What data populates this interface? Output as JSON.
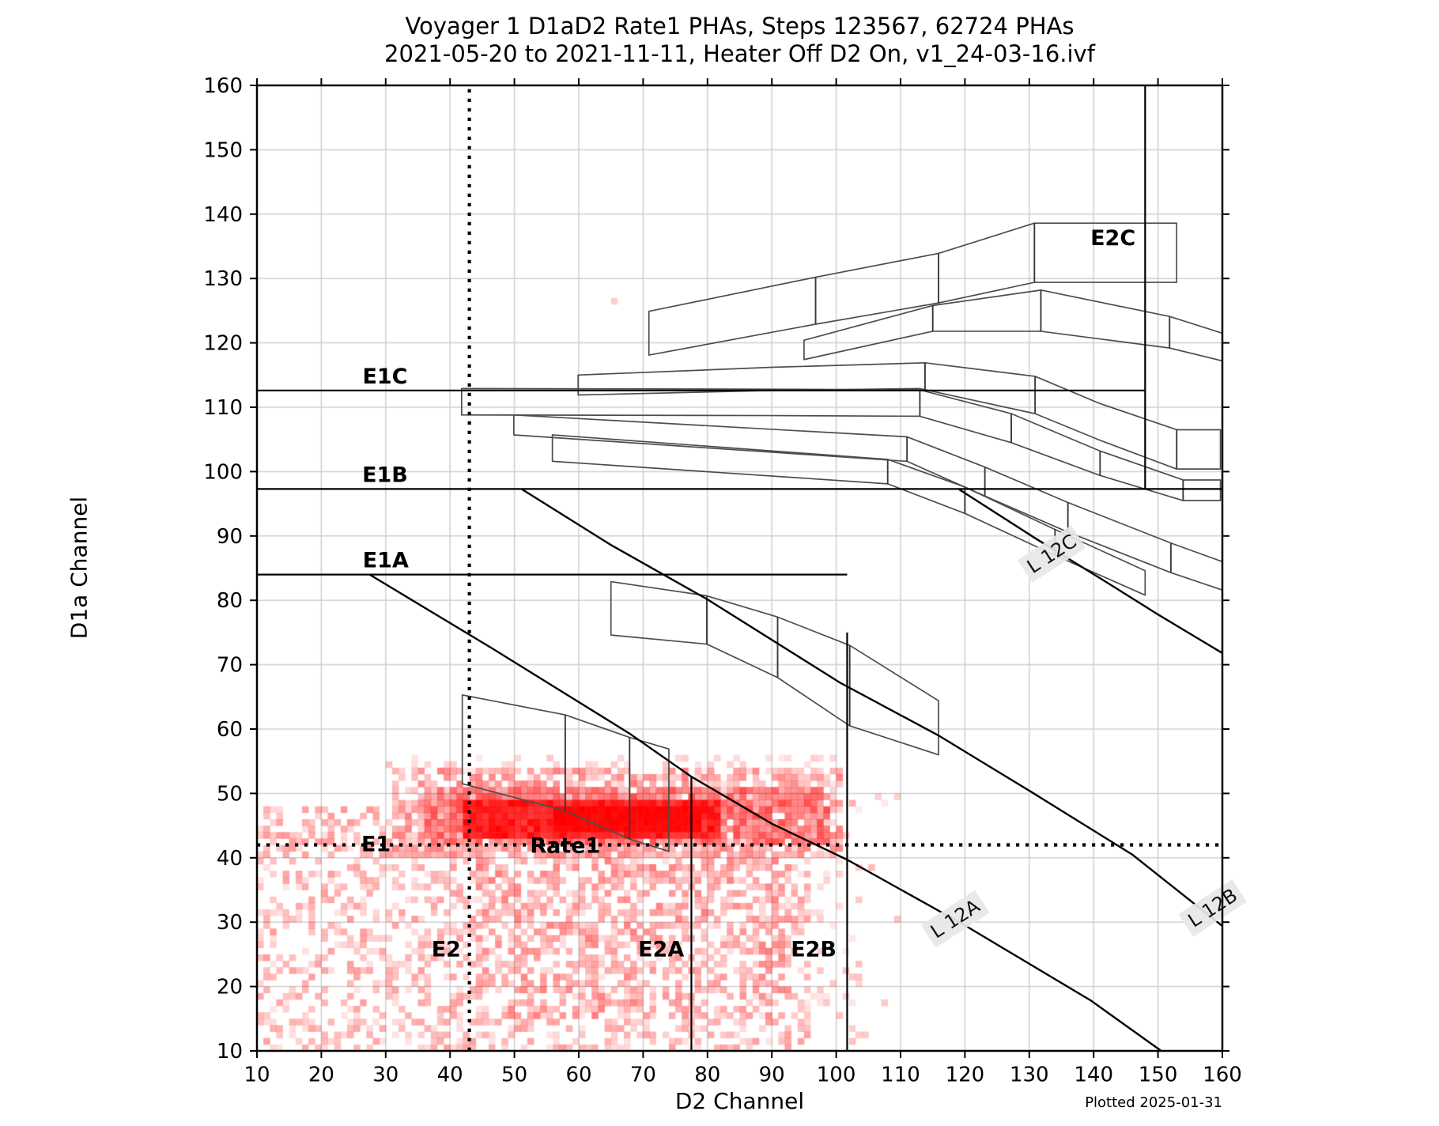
{
  "figure": {
    "title_line1": "Voyager 1 D1aD2 Rate1 PHAs, Steps 123567, 62724 PHAs",
    "title_line2": "2021-05-20 to 2021-11-11, Heater Off D2 On, v1_24-03-16.ivf",
    "footer": "Plotted 2025-01-31",
    "background": "#ffffff"
  },
  "chart_data": {
    "type": "heatmap",
    "title": "Voyager 1 D1aD2 Rate1 PHAs, Steps 123567, 62724 PHAs",
    "subtitle": "2021-05-20 to 2021-11-11, Heater Off D2 On, v1_24-03-16.ivf",
    "xlabel": "D2 Channel",
    "ylabel": "D1a Channel",
    "xlim": [
      10,
      160
    ],
    "ylim": [
      10,
      160
    ],
    "xticks": [
      10,
      20,
      30,
      40,
      50,
      60,
      70,
      80,
      90,
      100,
      110,
      120,
      130,
      140,
      150,
      160
    ],
    "yticks": [
      10,
      20,
      30,
      40,
      50,
      60,
      70,
      80,
      90,
      100,
      110,
      120,
      130,
      140,
      150,
      160
    ],
    "grid": true,
    "colors": {
      "heat": "#ff0000",
      "grid": "#cfcfcf",
      "band_stroke": "#4d4d4d",
      "line": "#000000",
      "label_bbox": "#e7e7e7"
    },
    "heatmap": {
      "cell_size": 1,
      "regions": [
        {
          "x": [
            10,
            95.5
          ],
          "y": [
            10,
            41.5
          ],
          "p": 0.4,
          "a": [
            0.1,
            0.38
          ]
        },
        {
          "x": [
            44,
            93
          ],
          "y": [
            15,
            41.5
          ],
          "p": 0.28,
          "a": [
            0.18,
            0.5
          ]
        },
        {
          "x": [
            10,
            39
          ],
          "y": [
            41.5,
            48
          ],
          "p": 0.45,
          "a": [
            0.12,
            0.4
          ]
        },
        {
          "x": [
            31,
            101
          ],
          "y": [
            40.5,
            53.5
          ],
          "p": 0.6,
          "a": [
            0.15,
            0.5
          ]
        },
        {
          "x": [
            36,
            99
          ],
          "y": [
            42,
            50.5
          ],
          "p": 0.85,
          "a": [
            0.3,
            0.7
          ]
        },
        {
          "x": [
            42,
            82
          ],
          "y": [
            43.5,
            48.5
          ],
          "p": 1.0,
          "a": [
            0.75,
            1.0
          ]
        },
        {
          "x": [
            56,
            79
          ],
          "y": [
            44,
            47.5
          ],
          "p": 1.0,
          "a": [
            0.95,
            1.0
          ]
        },
        {
          "x": [
            93,
            104
          ],
          "y": [
            10,
            44
          ],
          "p": 0.15,
          "a": [
            0.08,
            0.25
          ]
        },
        {
          "x": [
            34,
            101
          ],
          "y": [
            50.5,
            55.5
          ],
          "p": 0.18,
          "a": [
            0.08,
            0.22
          ]
        },
        {
          "x": [
            96,
            110
          ],
          "y": [
            40,
            50
          ],
          "p": 0.1,
          "a": [
            0.08,
            0.2
          ]
        }
      ],
      "strays": [
        [
          65.7,
          126.1
        ],
        [
          30.5,
          54.2
        ],
        [
          96.5,
          55.2
        ],
        [
          102.8,
          48.2
        ],
        [
          103.4,
          33.9
        ],
        [
          101.8,
          22.5
        ],
        [
          104.6,
          12.6
        ],
        [
          107.2,
          17.3
        ],
        [
          109.5,
          30.4
        ],
        [
          105.9,
          38.7
        ]
      ]
    },
    "h_lines": [
      {
        "label": "E1C",
        "y": 112.6,
        "x0": 10,
        "x1": 148
      },
      {
        "label": "E1B",
        "y": 97.3,
        "x0": 10,
        "x1": 160
      },
      {
        "label": "E1A",
        "y": 84.0,
        "x0": 10,
        "x1": 101.7
      }
    ],
    "v_lines": [
      {
        "x": 148.0,
        "y0": 97.3,
        "y1": 160
      },
      {
        "x": 101.7,
        "y0": 10,
        "y1": 75.0
      },
      {
        "x": 77.5,
        "y0": 10,
        "y1": 52.6
      }
    ],
    "dotted_lines": [
      {
        "axis": "y",
        "v": 42.0,
        "v0": 10,
        "v1": 160
      },
      {
        "axis": "x",
        "v": 43.0,
        "v0": 10,
        "v1": 160
      }
    ],
    "l_lines": [
      {
        "label": "L 12A",
        "points": [
          [
            27.5,
            84
          ],
          [
            46.6,
            72.5
          ],
          [
            67.9,
            59.3
          ],
          [
            77.5,
            52.6
          ],
          [
            90,
            45.3
          ],
          [
            101.7,
            39.7
          ],
          [
            120,
            29.5
          ],
          [
            139.6,
            17.8
          ],
          [
            150.5,
            10
          ]
        ],
        "label_pos": [
          118.5,
          30.5
        ],
        "rot": -33
      },
      {
        "label": "L 12B",
        "points": [
          [
            51.1,
            97.3
          ],
          [
            65,
            88.6
          ],
          [
            79.9,
            80.2
          ],
          [
            100.6,
            67.2
          ],
          [
            115.9,
            59.0
          ],
          [
            130.2,
            50.3
          ],
          [
            146,
            40.5
          ],
          [
            160,
            29.4
          ]
        ],
        "label_pos": [
          158.5,
          32.2
        ],
        "rot": -33
      },
      {
        "label": "L 12C",
        "points": [
          [
            119.0,
            97.3
          ],
          [
            131,
            89.6
          ],
          [
            140.9,
            83.5
          ],
          [
            150,
            77.8
          ],
          [
            160,
            71.8
          ]
        ],
        "label_pos": [
          133.5,
          87.2
        ],
        "rot": -33
      }
    ],
    "bands": [
      {
        "name": "band-e2c",
        "top": [
          [
            70.9,
            124.9
          ],
          [
            96.8,
            130.2
          ],
          [
            115.9,
            133.9
          ],
          [
            130.8,
            138.6
          ],
          [
            152.9,
            138.6
          ]
        ],
        "bottom": [
          [
            70.9,
            118.1
          ],
          [
            96.8,
            122.9
          ],
          [
            115.9,
            126.2
          ],
          [
            130.8,
            129.4
          ],
          [
            152.9,
            129.4
          ]
        ],
        "dividers": [
          96.8,
          115.9,
          130.8
        ]
      },
      {
        "name": "band-u2",
        "top": [
          [
            95,
            120.4
          ],
          [
            115.0,
            125.8
          ],
          [
            131.8,
            128.2
          ],
          [
            151.8,
            124.1
          ],
          [
            160,
            121.5
          ]
        ],
        "bottom": [
          [
            95,
            117.4
          ],
          [
            115.0,
            121.8
          ],
          [
            131.8,
            121.8
          ],
          [
            151.8,
            119.2
          ],
          [
            160,
            117.2
          ]
        ],
        "dividers": [
          115.0,
          131.8,
          151.8
        ]
      },
      {
        "name": "band-s3",
        "top": [
          [
            59.9,
            115.0
          ],
          [
            90,
            116.2
          ],
          [
            113.8,
            116.9
          ],
          [
            130.9,
            114.8
          ],
          [
            140.9,
            110.6
          ],
          [
            152.9,
            106.5
          ],
          [
            159.7,
            106.5
          ]
        ],
        "bottom": [
          [
            59.9,
            111.9
          ],
          [
            90,
            112.6
          ],
          [
            113.0,
            112.9
          ],
          [
            130.9,
            109.0
          ],
          [
            140.9,
            104.9
          ],
          [
            152.9,
            100.4
          ],
          [
            159.7,
            100.4
          ]
        ],
        "dividers": [
          113.8,
          130.9,
          152.9
        ]
      },
      {
        "name": "band-s4",
        "top": [
          [
            41.8,
            112.9
          ],
          [
            90,
            112.8
          ],
          [
            113.0,
            112.7
          ],
          [
            127.2,
            109.0
          ],
          [
            141,
            103.2
          ],
          [
            153.9,
            98.7
          ],
          [
            159.7,
            98.7
          ]
        ],
        "bottom": [
          [
            41.8,
            108.8
          ],
          [
            90,
            108.7
          ],
          [
            113.0,
            108.6
          ],
          [
            127.2,
            104.5
          ],
          [
            141,
            99.4
          ],
          [
            153.9,
            95.5
          ],
          [
            159.7,
            95.5
          ]
        ],
        "dividers": [
          113.0,
          127.2,
          141,
          153.9
        ]
      },
      {
        "name": "band-s5",
        "top": [
          [
            49.9,
            108.8
          ],
          [
            111.0,
            105.4
          ],
          [
            123.1,
            100.7
          ],
          [
            136,
            95.2
          ],
          [
            152,
            88.9
          ],
          [
            160,
            86.0
          ]
        ],
        "bottom": [
          [
            49.9,
            105.7
          ],
          [
            111.0,
            101.6
          ],
          [
            123.1,
            96.2
          ],
          [
            136,
            90.6
          ],
          [
            152,
            84.3
          ],
          [
            160,
            81.6
          ]
        ],
        "dividers": [
          111.0,
          123.1,
          136,
          152
        ]
      },
      {
        "name": "band-s6",
        "top": [
          [
            55.9,
            105.7
          ],
          [
            108,
            101.9
          ],
          [
            120,
            97.6
          ],
          [
            134,
            91.0
          ],
          [
            148,
            84.6
          ]
        ],
        "bottom": [
          [
            55.9,
            101.6
          ],
          [
            108,
            98.1
          ],
          [
            120,
            93.5
          ],
          [
            134,
            87.0
          ],
          [
            148,
            80.8
          ]
        ],
        "dividers": [
          108,
          120,
          134
        ]
      },
      {
        "name": "band-mid",
        "top": [
          [
            65.0,
            82.9
          ],
          [
            79.9,
            80.7
          ],
          [
            90.9,
            77.4
          ],
          [
            102.1,
            73.0
          ],
          [
            115.9,
            64.4
          ]
        ],
        "bottom": [
          [
            65.0,
            74.6
          ],
          [
            79.9,
            73.2
          ],
          [
            90.9,
            68.0
          ],
          [
            102.1,
            60.5
          ],
          [
            115.9,
            56.0
          ]
        ],
        "dividers": [
          79.9,
          90.9,
          102.1
        ]
      },
      {
        "name": "band-low",
        "top": [
          [
            41.9,
            65.3
          ],
          [
            57.9,
            62.2
          ],
          [
            67.9,
            58.7
          ],
          [
            74.0,
            56.9
          ]
        ],
        "bottom": [
          [
            41.9,
            51.5
          ],
          [
            57.9,
            47.3
          ],
          [
            67.9,
            42.9
          ],
          [
            74.0,
            41.0
          ]
        ],
        "dividers": [
          57.9,
          67.9
        ]
      }
    ],
    "region_labels": [
      {
        "text": "E2C",
        "x": 143.0,
        "y": 136.3
      },
      {
        "text": "E1C",
        "x": 29.9,
        "y": 114.8
      },
      {
        "text": "E1B",
        "x": 29.9,
        "y": 99.5
      },
      {
        "text": "E1A",
        "x": 30.0,
        "y": 86.2
      },
      {
        "text": "E1",
        "x": 28.5,
        "y": 42.1
      },
      {
        "text": "Rate1",
        "x": 57.9,
        "y": 41.9
      },
      {
        "text": "E2",
        "x": 39.4,
        "y": 25.8
      },
      {
        "text": "E2A",
        "x": 72.8,
        "y": 25.8
      },
      {
        "text": "E2B",
        "x": 96.5,
        "y": 25.8
      }
    ]
  }
}
